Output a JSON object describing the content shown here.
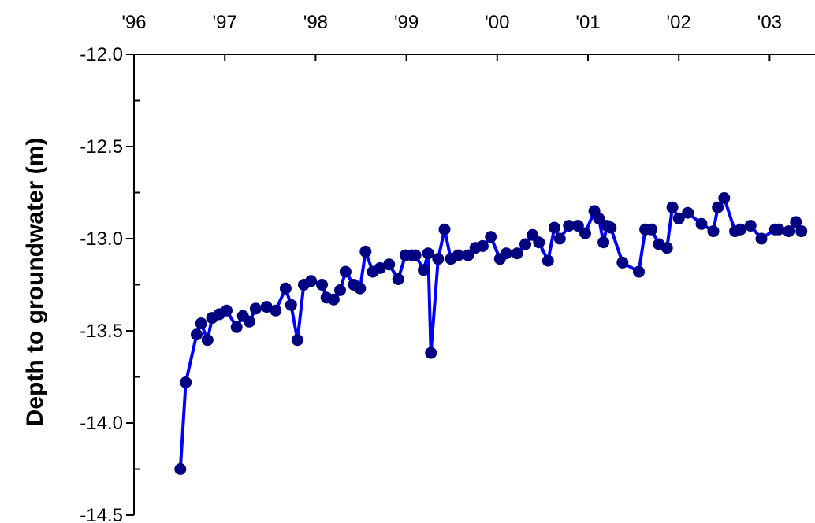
{
  "chart_data": {
    "type": "line",
    "title": "",
    "xlabel": "",
    "ylabel": "Depth to groundwater (m)",
    "x_axis_position": "top",
    "x_tick_labels": [
      "'96",
      "'97",
      "'98",
      "'99",
      "'00",
      "'01",
      "'02",
      "'03"
    ],
    "x_tick_values": [
      1996,
      1997,
      1998,
      1999,
      2000,
      2001,
      2002,
      2003
    ],
    "y_tick_labels": [
      "-12.0",
      "-12.5",
      "-13.0",
      "-13.5",
      "-14.0",
      "-14.5"
    ],
    "y_tick_values": [
      -12.0,
      -12.5,
      -13.0,
      -13.5,
      -14.0,
      -14.5
    ],
    "xlim": [
      1996.0,
      2003.5
    ],
    "ylim": [
      -14.5,
      -12.0
    ],
    "grid": false,
    "legend": "none",
    "line_color": "#0000ff",
    "marker_color": "#000080",
    "series": [
      {
        "x": [
          1996.51,
          1996.57,
          1996.69,
          1996.74,
          1996.81,
          1996.86,
          1996.94,
          1997.02,
          1997.13,
          1997.2,
          1997.27,
          1997.34,
          1997.46,
          1997.56,
          1997.67,
          1997.73,
          1997.8,
          1997.87,
          1997.95,
          1998.07,
          1998.12,
          1998.2,
          1998.27,
          1998.33,
          1998.42,
          1998.49,
          1998.55,
          1998.63,
          1998.71,
          1998.81,
          1998.91,
          1998.99,
          1999.06,
          1999.1,
          1999.19,
          1999.24,
          1999.27,
          1999.35,
          1999.42,
          1999.49,
          1999.57,
          1999.68,
          1999.76,
          1999.84,
          1999.93,
          2000.03,
          2000.1,
          2000.22,
          2000.31,
          2000.39,
          2000.46,
          2000.56,
          2000.63,
          2000.69,
          2000.79,
          2000.89,
          2000.97,
          2001.07,
          2001.12,
          2001.17,
          2001.21,
          2001.25,
          2001.38,
          2001.56,
          2001.63,
          2001.7,
          2001.78,
          2001.87,
          2001.93,
          2002.0,
          2002.1,
          2002.25,
          2002.38,
          2002.43,
          2002.5,
          2002.62,
          2002.68,
          2002.79,
          2002.91,
          2003.06,
          2003.1,
          2003.21,
          2003.29,
          2003.35
        ],
        "y": [
          -14.25,
          -13.78,
          -13.52,
          -13.46,
          -13.55,
          -13.43,
          -13.41,
          -13.39,
          -13.48,
          -13.42,
          -13.45,
          -13.38,
          -13.37,
          -13.39,
          -13.27,
          -13.36,
          -13.55,
          -13.25,
          -13.23,
          -13.25,
          -13.32,
          -13.33,
          -13.28,
          -13.18,
          -13.25,
          -13.27,
          -13.07,
          -13.18,
          -13.16,
          -13.14,
          -13.22,
          -13.09,
          -13.09,
          -13.09,
          -13.17,
          -13.08,
          -13.62,
          -13.11,
          -12.95,
          -13.11,
          -13.09,
          -13.09,
          -13.05,
          -13.04,
          -12.99,
          -13.11,
          -13.08,
          -13.08,
          -13.03,
          -12.98,
          -13.02,
          -13.12,
          -12.94,
          -13.0,
          -12.93,
          -12.93,
          -12.97,
          -12.85,
          -12.89,
          -13.02,
          -12.93,
          -12.94,
          -13.13,
          -13.18,
          -12.95,
          -12.95,
          -13.03,
          -13.05,
          -12.83,
          -12.89,
          -12.86,
          -12.92,
          -12.96,
          -12.83,
          -12.78,
          -12.96,
          -12.95,
          -12.93,
          -13.0,
          -12.95,
          -12.95,
          -12.96,
          -12.91,
          -12.96
        ]
      }
    ]
  }
}
